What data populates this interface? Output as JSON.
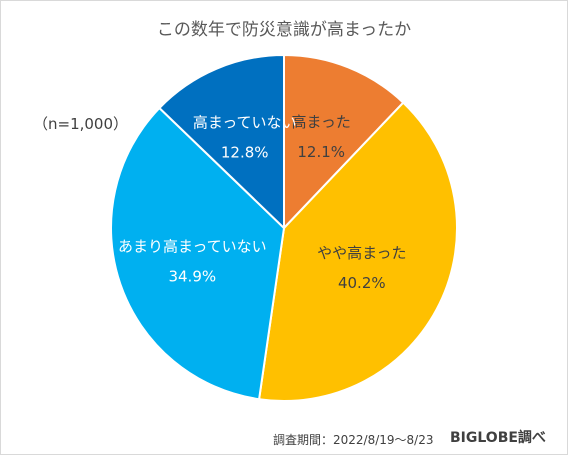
{
  "chart_data": {
    "type": "pie",
    "title": "この数年で防災意識が高まったか",
    "note": "（n=1,000）",
    "categories": [
      "高まった",
      "やや高まった",
      "あまり高まっていない",
      "高まっていない"
    ],
    "values": [
      12.1,
      40.2,
      34.9,
      12.8
    ],
    "value_labels": [
      "12.1%",
      "40.2%",
      "34.9%",
      "12.8%"
    ],
    "colors": [
      "#ED7D31",
      "#FFC000",
      "#00B0F0",
      "#0070C0"
    ],
    "start_angle_deg": 0,
    "direction": "clockwise",
    "legend": "none"
  },
  "footer": {
    "period": "調査期間：2022/8/19〜8/23",
    "source": "BIGLOBE調べ"
  }
}
